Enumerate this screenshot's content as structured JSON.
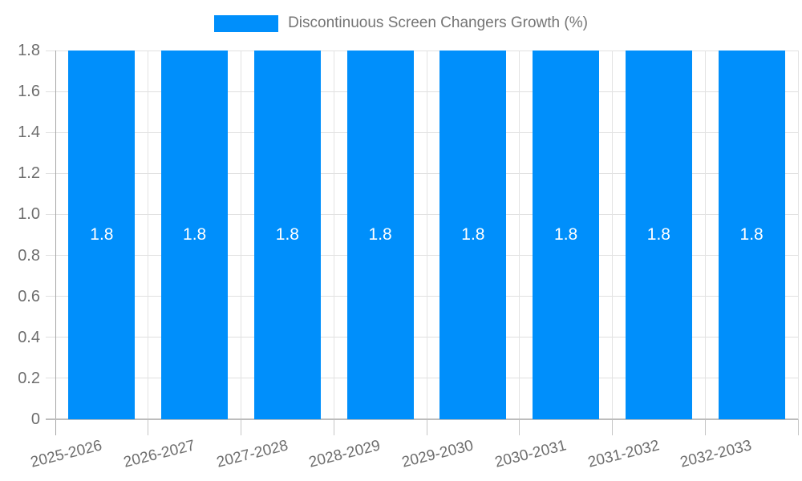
{
  "legend": {
    "label": "Discontinuous Screen Changers Growth (%)"
  },
  "colors": {
    "bar": "#008FFB",
    "bar_label": "#ffffff",
    "axis_text": "#6e6e6e",
    "legend_text": "#757575",
    "grid": "#e0e0e0",
    "axis_line": "#a6a6a6"
  },
  "chart_data": {
    "type": "bar",
    "title": "Discontinuous Screen Changers Growth (%)",
    "xlabel": "",
    "ylabel": "",
    "categories": [
      "2025-2026",
      "2026-2027",
      "2027-2028",
      "2028-2029",
      "2029-2030",
      "2030-2031",
      "2031-2032",
      "2032-2033"
    ],
    "series": [
      {
        "name": "Discontinuous Screen Changers Growth (%)",
        "values": [
          1.8,
          1.8,
          1.8,
          1.8,
          1.8,
          1.8,
          1.8,
          1.8
        ]
      }
    ],
    "bar_labels": [
      "1.8",
      "1.8",
      "1.8",
      "1.8",
      "1.8",
      "1.8",
      "1.8",
      "1.8"
    ],
    "ylim": [
      0,
      1.8
    ],
    "ytick_values": [
      0,
      0.2,
      0.4,
      0.6,
      0.8,
      1.0,
      1.2,
      1.4,
      1.6,
      1.8
    ],
    "ytick_labels": [
      "0",
      "0.2",
      "0.4",
      "0.6",
      "0.8",
      "1.0",
      "1.2",
      "1.4",
      "1.6",
      "1.8"
    ],
    "grid": true,
    "legend_position": "top"
  }
}
